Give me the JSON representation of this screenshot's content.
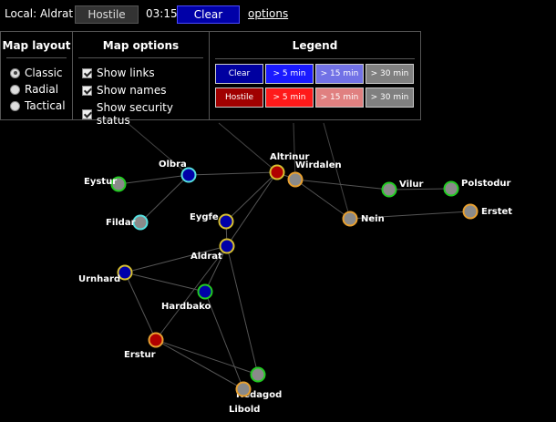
{
  "topbar": {
    "local_label": "Local: Aldrat",
    "hostile_label": "Hostile",
    "time": "03:15",
    "clear_label": "Clear",
    "options_label": "options"
  },
  "layout_panel": {
    "title": "Map layout",
    "options": [
      {
        "label": "Classic",
        "selected": true
      },
      {
        "label": "Radial",
        "selected": false
      },
      {
        "label": "Tactical",
        "selected": false
      }
    ]
  },
  "options_panel": {
    "title": "Map options",
    "checks": [
      {
        "label": "Show links",
        "checked": true
      },
      {
        "label": "Show names",
        "checked": true
      },
      {
        "label": "Show security status",
        "checked": true
      }
    ]
  },
  "legend": {
    "title": "Legend",
    "row1": [
      {
        "label": "Clear",
        "color": "#0000a0"
      },
      {
        "label": "> 5 min",
        "color": "#1a1aff"
      },
      {
        "label": "> 15 min",
        "color": "#7272e6"
      },
      {
        "label": "> 30 min",
        "color": "#808080"
      }
    ],
    "row2": [
      {
        "label": "Hostile",
        "color": "#a00000"
      },
      {
        "label": "> 5 min",
        "color": "#ff1a1a"
      },
      {
        "label": "> 15 min",
        "color": "#e08080"
      },
      {
        "label": "> 30 min",
        "color": "#808080"
      }
    ]
  },
  "map": {
    "systems": [
      {
        "name": "Eystur",
        "fill": "gray",
        "ring": "green"
      },
      {
        "name": "Olbra",
        "fill": "blue",
        "ring": "cyan"
      },
      {
        "name": "Fildar",
        "fill": "gray",
        "ring": "cyan"
      },
      {
        "name": "Altrinur",
        "fill": "red",
        "ring": "yellow"
      },
      {
        "name": "Wirdalen",
        "fill": "gray",
        "ring": "orange"
      },
      {
        "name": "Vilur",
        "fill": "gray",
        "ring": "green"
      },
      {
        "name": "Polstodur",
        "fill": "gray",
        "ring": "green"
      },
      {
        "name": "Nein",
        "fill": "gray",
        "ring": "orange"
      },
      {
        "name": "Erstet",
        "fill": "gray",
        "ring": "orange"
      },
      {
        "name": "Eygfe",
        "fill": "blue",
        "ring": "yellow"
      },
      {
        "name": "Aldrat",
        "fill": "blue",
        "ring": "yellow"
      },
      {
        "name": "Urnhard",
        "fill": "blue",
        "ring": "yellow"
      },
      {
        "name": "Hardbako",
        "fill": "blue",
        "ring": "green"
      },
      {
        "name": "Erstur",
        "fill": "red",
        "ring": "orange"
      },
      {
        "name": "Hedagod",
        "fill": "gray",
        "ring": "green"
      },
      {
        "name": "Libold",
        "fill": "gray",
        "ring": "orange"
      }
    ],
    "links": [
      [
        "Olbra",
        "Eystur"
      ],
      [
        "Olbra",
        "Fildar"
      ],
      [
        "Olbra",
        "Altrinur"
      ],
      [
        "Altrinur",
        "Wirdalen"
      ],
      [
        "Altrinur",
        "Eygfe"
      ],
      [
        "Altrinur",
        "Aldrat"
      ],
      [
        "Wirdalen",
        "Vilur"
      ],
      [
        "Wirdalen",
        "Nein"
      ],
      [
        "Vilur",
        "Polstodur"
      ],
      [
        "Nein",
        "Erstet"
      ],
      [
        "Eygfe",
        "Aldrat"
      ],
      [
        "Aldrat",
        "Urnhard"
      ],
      [
        "Aldrat",
        "Hardbako"
      ],
      [
        "Aldrat",
        "Hedagod"
      ],
      [
        "Aldrat",
        "Erstur"
      ],
      [
        "Urnhard",
        "Hardbako"
      ],
      [
        "Urnhard",
        "Erstur"
      ],
      [
        "Erstur",
        "Hedagod"
      ],
      [
        "Erstur",
        "Libold"
      ],
      [
        "Hardbako",
        "Libold"
      ]
    ]
  }
}
